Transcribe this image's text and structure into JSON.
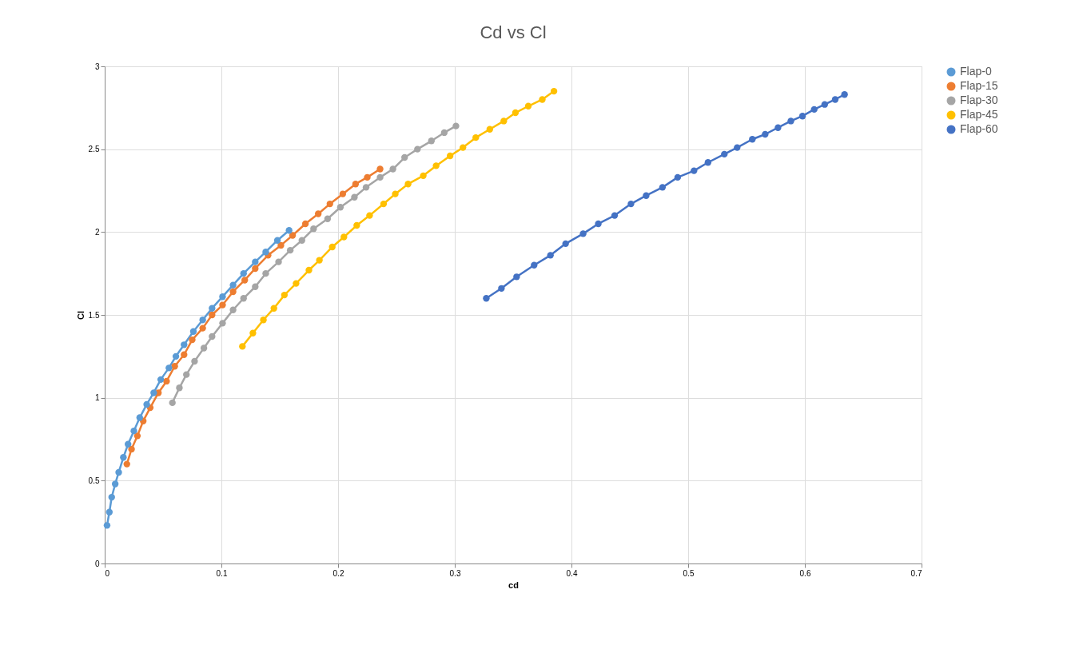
{
  "chart_data": {
    "type": "line",
    "title": "Cd vs Cl",
    "xlabel": "cd",
    "ylabel": "Cl",
    "xlim": [
      0,
      0.7
    ],
    "xticks": [
      0,
      0.1,
      0.2,
      0.3,
      0.4,
      0.5,
      0.6,
      0.7
    ],
    "ylim": [
      0,
      3
    ],
    "yticks": [
      0,
      0.5,
      1,
      1.5,
      2,
      2.5,
      3
    ],
    "grid": true,
    "legend": "right",
    "marker": "circle",
    "line_style": "solid",
    "series": [
      {
        "name": "Flap-0",
        "color": "#5b9bd5",
        "x": [
          0.002,
          0.004,
          0.006,
          0.009,
          0.012,
          0.016,
          0.02,
          0.025,
          0.03,
          0.036,
          0.042,
          0.048,
          0.055,
          0.061,
          0.068,
          0.076,
          0.084,
          0.092,
          0.101,
          0.11,
          0.119,
          0.129,
          0.138,
          0.148,
          0.158
        ],
        "values": [
          0.23,
          0.31,
          0.4,
          0.48,
          0.55,
          0.64,
          0.72,
          0.8,
          0.88,
          0.96,
          1.03,
          1.11,
          1.18,
          1.25,
          1.32,
          1.4,
          1.47,
          1.54,
          1.61,
          1.68,
          1.75,
          1.82,
          1.88,
          1.95,
          2.01
        ]
      },
      {
        "name": "Flap-15",
        "color": "#ed7d31",
        "x": [
          0.019,
          0.023,
          0.028,
          0.033,
          0.039,
          0.046,
          0.053,
          0.06,
          0.068,
          0.075,
          0.084,
          0.092,
          0.101,
          0.11,
          0.12,
          0.129,
          0.14,
          0.151,
          0.161,
          0.172,
          0.183,
          0.193,
          0.204,
          0.215,
          0.225,
          0.236
        ],
        "values": [
          0.6,
          0.69,
          0.77,
          0.86,
          0.94,
          1.03,
          1.1,
          1.19,
          1.26,
          1.35,
          1.42,
          1.5,
          1.56,
          1.64,
          1.71,
          1.78,
          1.86,
          1.92,
          1.98,
          2.05,
          2.11,
          2.17,
          2.23,
          2.29,
          2.33,
          2.38
        ]
      },
      {
        "name": "Flap-30",
        "color": "#a5a5a5",
        "x": [
          0.058,
          0.064,
          0.07,
          0.077,
          0.085,
          0.092,
          0.101,
          0.11,
          0.119,
          0.129,
          0.138,
          0.149,
          0.159,
          0.169,
          0.179,
          0.191,
          0.202,
          0.214,
          0.224,
          0.236,
          0.247,
          0.257,
          0.268,
          0.28,
          0.291,
          0.301
        ],
        "values": [
          0.97,
          1.06,
          1.14,
          1.22,
          1.3,
          1.37,
          1.45,
          1.53,
          1.6,
          1.67,
          1.75,
          1.82,
          1.89,
          1.95,
          2.02,
          2.08,
          2.15,
          2.21,
          2.27,
          2.33,
          2.38,
          2.45,
          2.5,
          2.55,
          2.6,
          2.64
        ]
      },
      {
        "name": "Flap-45",
        "color": "#ffc000",
        "x": [
          0.118,
          0.127,
          0.136,
          0.145,
          0.154,
          0.164,
          0.175,
          0.184,
          0.195,
          0.205,
          0.216,
          0.227,
          0.239,
          0.249,
          0.26,
          0.273,
          0.284,
          0.296,
          0.307,
          0.318,
          0.33,
          0.342,
          0.352,
          0.363,
          0.375,
          0.385
        ],
        "values": [
          1.31,
          1.39,
          1.47,
          1.54,
          1.62,
          1.69,
          1.77,
          1.83,
          1.91,
          1.97,
          2.04,
          2.1,
          2.17,
          2.23,
          2.29,
          2.34,
          2.4,
          2.46,
          2.51,
          2.57,
          2.62,
          2.67,
          2.72,
          2.76,
          2.8,
          2.85
        ]
      },
      {
        "name": "Flap-60",
        "color": "#4472c4",
        "x": [
          0.327,
          0.34,
          0.353,
          0.368,
          0.382,
          0.395,
          0.41,
          0.423,
          0.437,
          0.451,
          0.464,
          0.478,
          0.491,
          0.505,
          0.517,
          0.531,
          0.542,
          0.555,
          0.566,
          0.577,
          0.588,
          0.598,
          0.608,
          0.617,
          0.626,
          0.634
        ],
        "values": [
          1.6,
          1.66,
          1.73,
          1.8,
          1.86,
          1.93,
          1.99,
          2.05,
          2.1,
          2.17,
          2.22,
          2.27,
          2.33,
          2.37,
          2.42,
          2.47,
          2.51,
          2.56,
          2.59,
          2.63,
          2.67,
          2.7,
          2.74,
          2.77,
          2.8,
          2.83
        ]
      }
    ]
  }
}
